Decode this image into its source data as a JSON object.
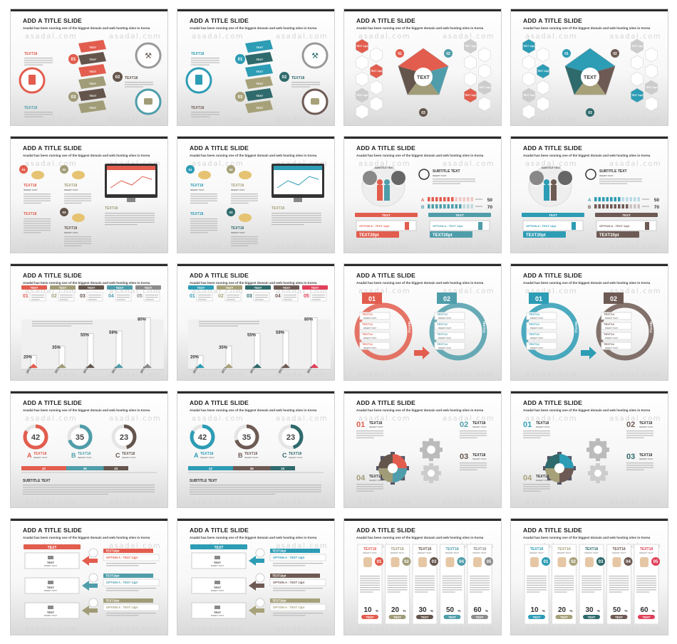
{
  "common": {
    "title": "ADD A TITLE SLIDE",
    "subtitle": "Asadal has been running one of the biggest domain and web hosting sites in Korea",
    "watermark": "asadal.com",
    "body_text": "Asadal has been running one of the biggest domain and web hosting sites in Korea since March 1998."
  },
  "palettes": {
    "warm": [
      "#e25d4e",
      "#a19c78",
      "#64554c",
      "#4f9daa",
      "#8c8c8c"
    ],
    "cool": [
      "#2d9cb5",
      "#a7a17a",
      "#2f6a6c",
      "#6e5a54",
      "#e0405a"
    ]
  },
  "s1": {
    "num": [
      "01",
      "02",
      "03"
    ],
    "text": "TEXT",
    "text18": "TEXT18"
  },
  "s3": {
    "center": "TEXT",
    "hex": "TEXT 14pt",
    "num": [
      "01",
      "02",
      "03"
    ]
  },
  "s5": {
    "text18": "TEXT18",
    "insert": "INSERT TEXT",
    "num": [
      "01",
      "02",
      "03"
    ]
  },
  "s7": {
    "subtitle_text": "SUBTITLE TEXT",
    "insert": "INSERT TEXT",
    "bubble": "TEXT",
    "subtitle_in": "SUBTITLE TEXT",
    "rows": [
      {
        "label": "A",
        "value": "50"
      },
      {
        "label": "B",
        "value": "70"
      }
    ],
    "card_head": "TEXT",
    "option": "OPTION A : TEXT 14pt",
    "big": "TEXT20pt"
  },
  "s9": {
    "tabs": [
      "TEXT",
      "TEXT",
      "TEXT",
      "TEXT",
      "TEXT"
    ],
    "nums": [
      "01",
      "02",
      "03",
      "04",
      "05"
    ],
    "chart_data": {
      "type": "bar",
      "categories": [
        "2010",
        "2011",
        "2012",
        "2013",
        "2014"
      ],
      "values": [
        20,
        35,
        55,
        59,
        80
      ],
      "labels": [
        "20%",
        "35%",
        "55%",
        "59%",
        "80%"
      ],
      "ylim": [
        0,
        100
      ]
    }
  },
  "s11": {
    "nums": [
      "01",
      "02"
    ],
    "item": "TEXT14",
    "insert": "INSERT TEXT",
    "side": "TEXT14"
  },
  "s13": {
    "letters": [
      "A",
      "B",
      "C"
    ],
    "text18": "TEXT18",
    "insert": "INSERT TEXT",
    "subtitle": "SUBTITLE TEXT",
    "chart_data": {
      "type": "bar",
      "categories": [
        "A",
        "B",
        "C"
      ],
      "values": [
        42,
        35,
        23
      ],
      "title": "",
      "xlabel": "",
      "ylabel": ""
    }
  },
  "s15": {
    "nums": [
      "01",
      "02",
      "03",
      "04"
    ],
    "text18": "TEXT18",
    "insert": "INSERT TEXT"
  },
  "s17": {
    "head": "TEXT",
    "side": [
      "TEXT16pt",
      "TEXT16pt",
      "TEXT16pt"
    ],
    "options": [
      "OPTION A : TEXT 14pt",
      "OPTION A : TEXT 14pt",
      "OPTION A : TEXT 14pt"
    ],
    "box": "TEXT",
    "insert": "INSERT TEXT"
  },
  "s19": {
    "nums": [
      "01",
      "02",
      "03",
      "04",
      "05"
    ],
    "head": "TEXT18",
    "insert": "INSERT TEXT",
    "chart_data": {
      "type": "table",
      "categories": [
        "01",
        "02",
        "03",
        "04",
        "05"
      ],
      "values": [
        10,
        20,
        30,
        50,
        60
      ],
      "unit": "%",
      "labels": [
        "TEXT",
        "TEXT",
        "TEXT",
        "TEXT",
        "TEXT"
      ]
    }
  }
}
